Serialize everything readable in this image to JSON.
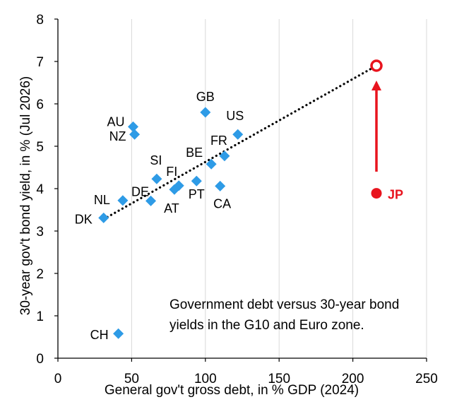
{
  "chart_data": {
    "type": "scatter",
    "xlabel": "General gov't gross debt, in % GDP (2024)",
    "ylabel": "30-year gov't bond yield, in % (Jul 2026)",
    "xlim": [
      0,
      250
    ],
    "ylim": [
      0,
      8
    ],
    "xticks": [
      "0",
      "50",
      "100",
      "150",
      "200",
      "250"
    ],
    "yticks": [
      "0",
      "1",
      "2",
      "3",
      "4",
      "5",
      "6",
      "7",
      "8"
    ],
    "grid": "vertical",
    "annotation": [
      "Government debt versus 30-year bond",
      "yields in the G10 and Euro zone."
    ],
    "series": [
      {
        "marker": "diamond",
        "color": "#2E9BE6",
        "points": [
          {
            "label": "AU",
            "x": 51,
            "y": 5.46
          },
          {
            "label": "NZ",
            "x": 52,
            "y": 5.28
          },
          {
            "label": "GB",
            "x": 100,
            "y": 5.8
          },
          {
            "label": "US",
            "x": 122,
            "y": 5.28
          },
          {
            "label": "FR",
            "x": 113,
            "y": 4.77
          },
          {
            "label": "BE",
            "x": 104,
            "y": 4.58
          },
          {
            "label": "SI",
            "x": 67,
            "y": 4.23
          },
          {
            "label": "FI",
            "x": 82,
            "y": 4.07
          },
          {
            "label": "DE",
            "x": 63,
            "y": 3.71
          },
          {
            "label": "AT",
            "x": 79,
            "y": 3.98
          },
          {
            "label": "PT",
            "x": 94,
            "y": 4.18
          },
          {
            "label": "CA",
            "x": 110,
            "y": 4.06
          },
          {
            "label": "NL",
            "x": 44,
            "y": 3.72
          },
          {
            "label": "DK",
            "x": 31,
            "y": 3.31
          },
          {
            "label": "CH",
            "x": 41,
            "y": 0.58
          }
        ]
      },
      {
        "marker": "circle",
        "color": "#E8141E",
        "points": [
          {
            "label": "JP",
            "x": 216,
            "y": 3.89
          }
        ]
      }
    ],
    "trendline": {
      "style": "dotted",
      "color": "#000000",
      "from": {
        "x": 31,
        "y": 3.28
      },
      "to": {
        "x": 216,
        "y": 6.9
      }
    },
    "projection": {
      "color": "#E8141E",
      "marker": "hollow-circle",
      "x": 216,
      "y": 6.9,
      "arrow_from_y": 4.4,
      "arrow_to_y": 6.55
    }
  }
}
